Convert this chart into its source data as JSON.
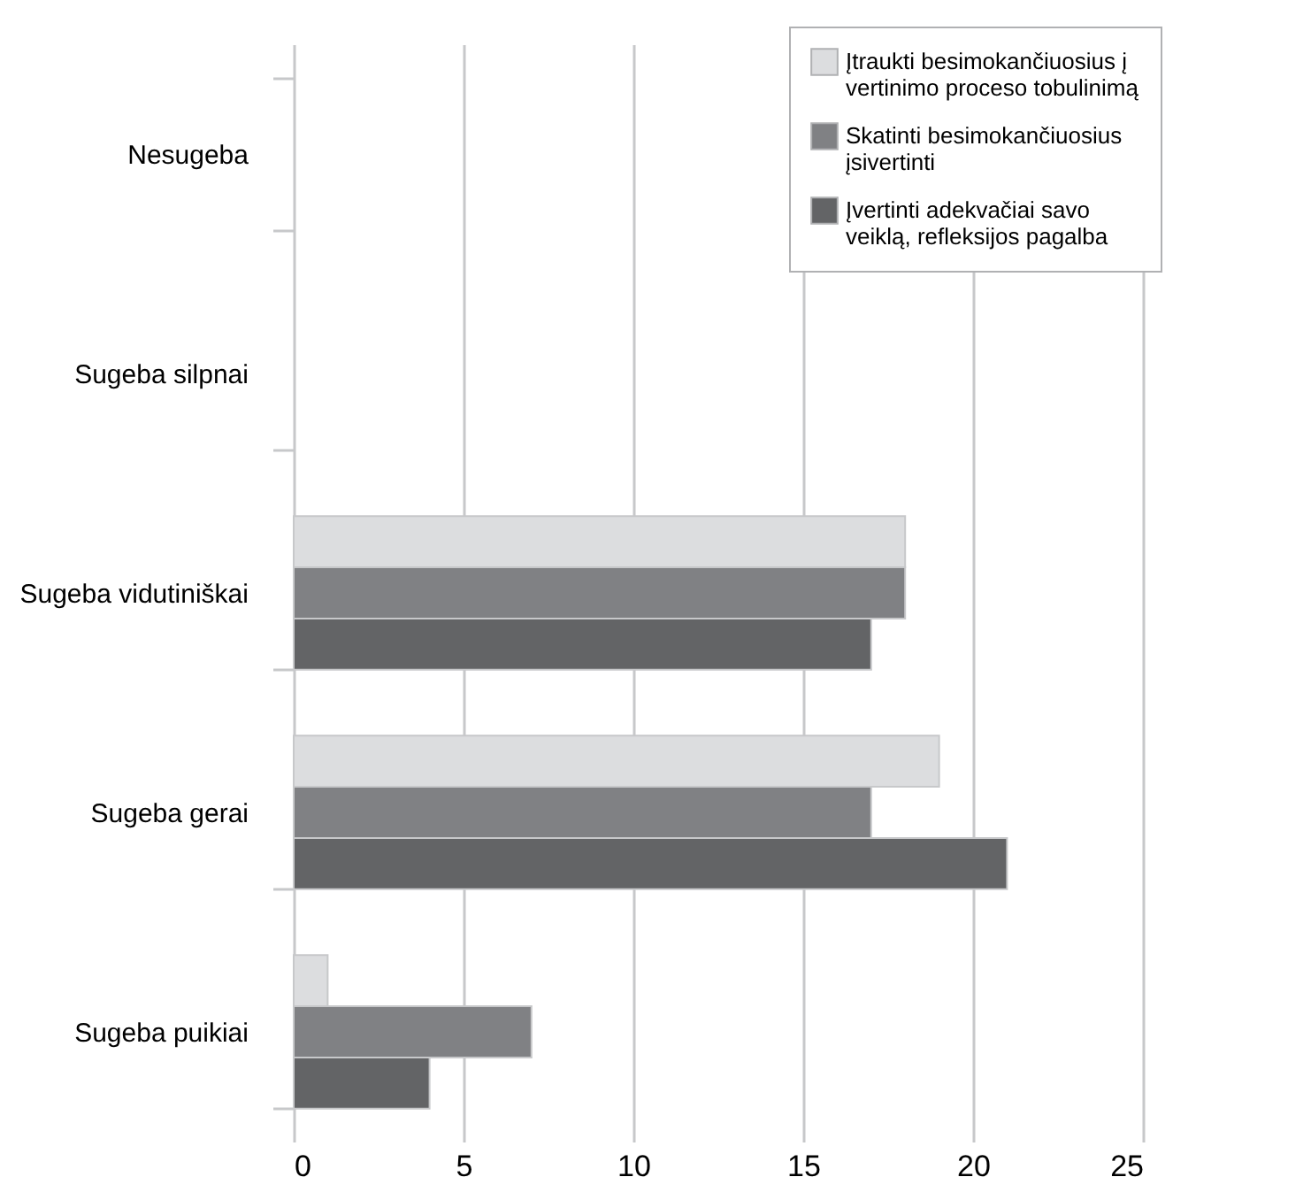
{
  "chart_data": {
    "type": "bar",
    "orientation": "horizontal",
    "categories": [
      "Nesugeba",
      "Sugeba silpnai",
      "Sugeba vidutiniškai",
      "Sugeba gerai",
      "Sugeba puikiai"
    ],
    "series": [
      {
        "name": "Įtraukti besimokančiuosius į vertinimo proceso tobulinimą",
        "color": "#dcdddf",
        "values": [
          null,
          null,
          18,
          19,
          1
        ]
      },
      {
        "name": "Skatinti besimokančiuosius įsivertinti",
        "color": "#808184",
        "values": [
          null,
          null,
          18,
          17,
          7
        ]
      },
      {
        "name": "Įvertinti adekvačiai savo veiklą, refleksijos pagalba",
        "color": "#636466",
        "values": [
          null,
          null,
          17,
          21,
          4
        ]
      }
    ],
    "xlim": [
      0,
      25
    ],
    "xticks": [
      0,
      5,
      10,
      15,
      20,
      25
    ],
    "grid": "x",
    "legend": "top right"
  }
}
